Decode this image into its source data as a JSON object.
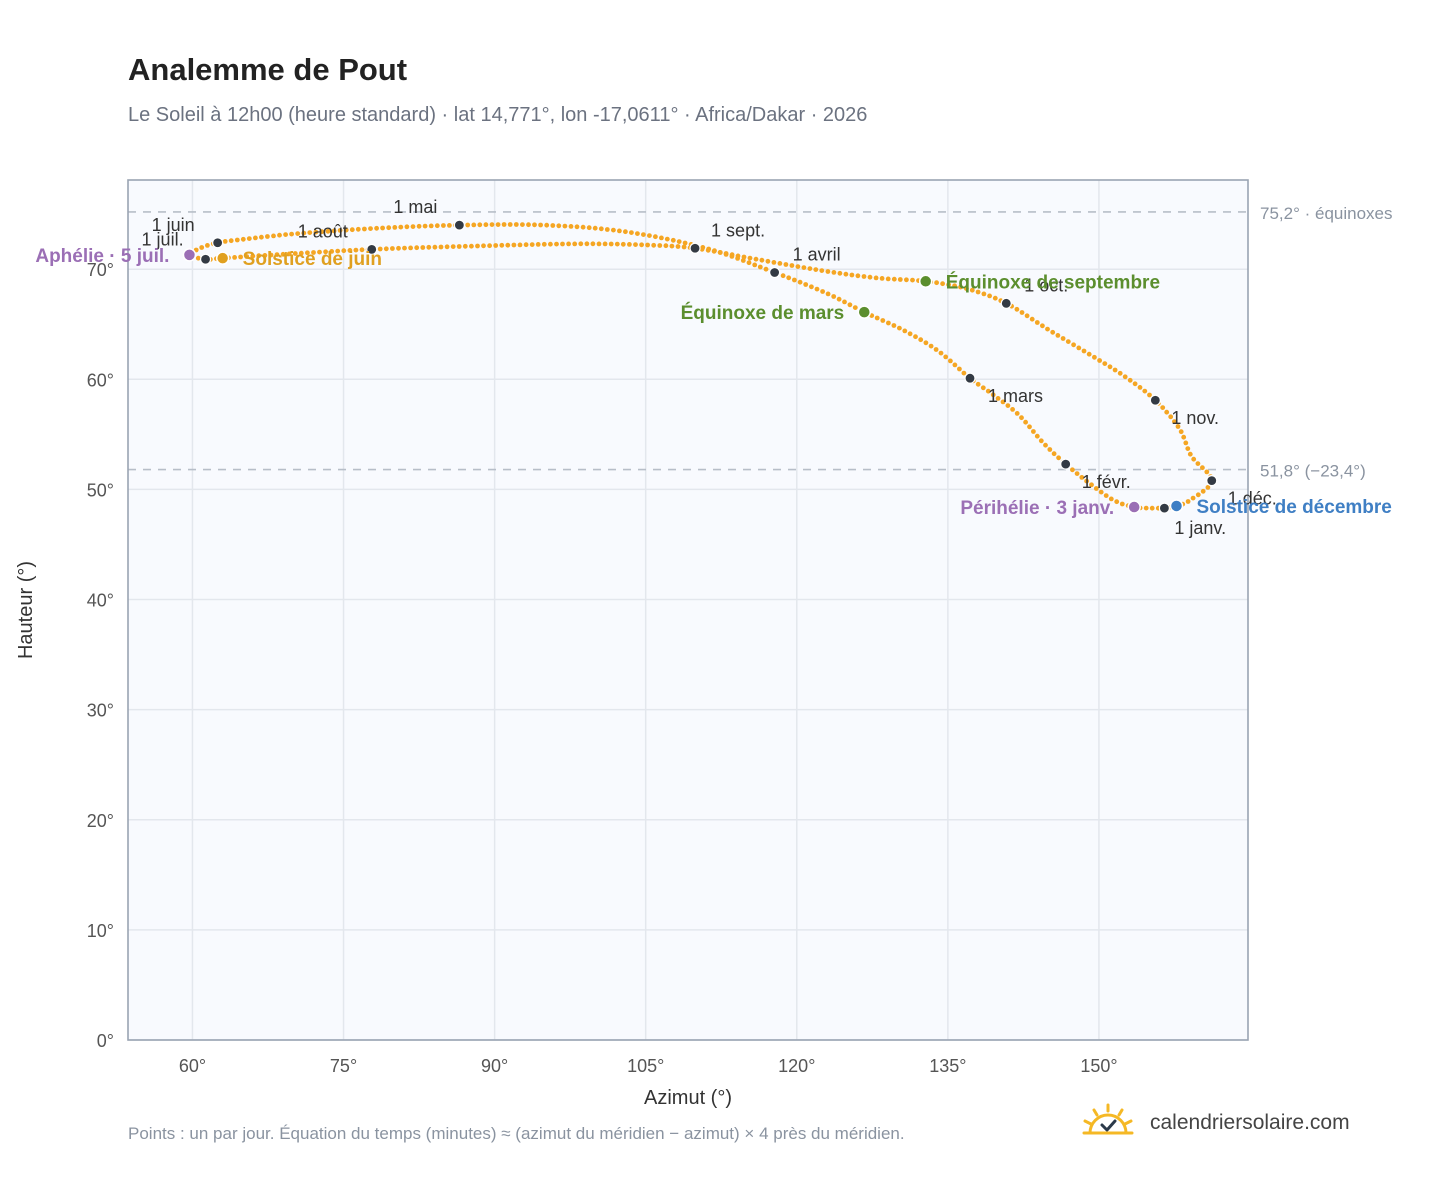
{
  "header": {
    "title": "Analemme de Pout",
    "subtitle": "Le Soleil à 12h00 (heure standard) · lat 14,771°, lon -17,0611° · Africa/Dakar · 2026"
  },
  "footer": {
    "note": "Points : un par jour. Équation du temps (minutes) ≈ (azimut du méridien − azimut) × 4 près du méridien.",
    "brand": "calendriersolaire.com",
    "brand_icon": "sun-check-icon",
    "brand_color": "#f5b825"
  },
  "colors": {
    "curve": "#f5a623",
    "month_marker": "#333a44",
    "equinox": "#5b8e2e",
    "june_solstice": "#e0a020",
    "december_solstice": "#3f7fc4",
    "apsis": "#9b6fb5",
    "plot_bg": "#f8fafe",
    "grid": "#e3e7ed",
    "frame": "#9aa4b2",
    "ref_line": "#b7bec8"
  },
  "chart_data": {
    "type": "scatter",
    "xlabel": "Azimut (°)",
    "ylabel": "Hauteur (°)",
    "xlim": [
      53.6,
      164.8
    ],
    "ylim": [
      0,
      78.1
    ],
    "x_ticks": [
      60,
      75,
      90,
      105,
      120,
      135,
      150
    ],
    "x_tick_labels": [
      "60°",
      "75°",
      "90°",
      "105°",
      "120°",
      "135°",
      "150°"
    ],
    "y_ticks": [
      0,
      10,
      20,
      30,
      40,
      50,
      60,
      70
    ],
    "y_tick_labels": [
      "0°",
      "10°",
      "20°",
      "30°",
      "40°",
      "50°",
      "60°",
      "70°"
    ],
    "grid": true,
    "reference_lines": [
      {
        "y": 75.2,
        "label": "75,2° · équinoxes"
      },
      {
        "y": 51.8,
        "label": "51,8° (−23,4°)"
      }
    ],
    "series": [
      {
        "points_per_day": true,
        "path_anchors": [
          [
            156.5,
            48.3
          ],
          [
            155.0,
            48.3
          ],
          [
            153.5,
            48.4
          ],
          [
            151.5,
            49.0
          ],
          [
            149.0,
            50.6
          ],
          [
            146.7,
            52.3
          ],
          [
            144.5,
            54.2
          ],
          [
            142.0,
            56.8
          ],
          [
            139.5,
            58.6
          ],
          [
            137.2,
            60.1
          ],
          [
            134.0,
            62.6
          ],
          [
            130.5,
            64.5
          ],
          [
            126.7,
            66.1
          ],
          [
            123.0,
            67.8
          ],
          [
            117.8,
            69.7
          ],
          [
            111.0,
            71.9
          ],
          [
            103.0,
            73.4
          ],
          [
            95.0,
            74.0
          ],
          [
            86.5,
            74.0
          ],
          [
            78.0,
            73.7
          ],
          [
            70.0,
            73.2
          ],
          [
            64.0,
            72.6
          ],
          [
            62.5,
            72.4
          ],
          [
            61.0,
            72.0
          ],
          [
            59.7,
            71.3
          ],
          [
            61.3,
            70.9
          ],
          [
            63.0,
            71.0
          ],
          [
            68.0,
            71.3
          ],
          [
            77.8,
            71.8
          ],
          [
            88.0,
            72.1
          ],
          [
            98.0,
            72.3
          ],
          [
            105.0,
            72.2
          ],
          [
            109.9,
            71.9
          ],
          [
            116.0,
            70.9
          ],
          [
            123.0,
            69.8
          ],
          [
            128.0,
            69.2
          ],
          [
            132.8,
            68.9
          ],
          [
            137.0,
            68.2
          ],
          [
            140.8,
            66.9
          ],
          [
            145.0,
            64.5
          ],
          [
            149.0,
            62.3
          ],
          [
            152.5,
            60.3
          ],
          [
            155.6,
            58.1
          ],
          [
            158.0,
            55.5
          ],
          [
            159.2,
            53.0
          ],
          [
            161.2,
            50.8
          ],
          [
            159.0,
            49.0
          ],
          [
            157.7,
            48.5
          ],
          [
            156.5,
            48.3
          ]
        ]
      }
    ],
    "month_markers": [
      {
        "label": "1 janv.",
        "x": 156.5,
        "y": 48.3,
        "lx": 10,
        "ly": 26
      },
      {
        "label": "1 févr.",
        "x": 146.7,
        "y": 52.3,
        "lx": 16,
        "ly": 24
      },
      {
        "label": "1 mars",
        "x": 137.2,
        "y": 60.1,
        "lx": 18,
        "ly": 24
      },
      {
        "label": "1 avril",
        "x": 117.8,
        "y": 69.7,
        "lx": 18,
        "ly": -12
      },
      {
        "label": "1 mai",
        "x": 86.5,
        "y": 74.0,
        "lx": -66,
        "ly": -12
      },
      {
        "label": "1 juin",
        "x": 62.5,
        "y": 72.4,
        "lx": -66,
        "ly": -12
      },
      {
        "label": "1 juil.",
        "x": 61.3,
        "y": 70.9,
        "lx": -64,
        "ly": -14
      },
      {
        "label": "1 août",
        "x": 77.8,
        "y": 71.8,
        "lx": -74,
        "ly": -12
      },
      {
        "label": "1 sept.",
        "x": 109.9,
        "y": 71.9,
        "lx": 16,
        "ly": -12
      },
      {
        "label": "1 oct.",
        "x": 140.8,
        "y": 66.9,
        "lx": 18,
        "ly": -12
      },
      {
        "label": "1 nov.",
        "x": 155.6,
        "y": 58.1,
        "lx": 16,
        "ly": 24
      },
      {
        "label": "1 déc.",
        "x": 161.2,
        "y": 50.8,
        "lx": 16,
        "ly": 24
      }
    ],
    "events": [
      {
        "label": "Équinoxe de mars",
        "x": 126.7,
        "y": 66.1,
        "color_key": "equinox",
        "side": "left"
      },
      {
        "label": "Équinoxe de septembre",
        "x": 132.8,
        "y": 68.9,
        "color_key": "equinox",
        "side": "right"
      },
      {
        "label": "Solstice de juin",
        "x": 63.0,
        "y": 71.0,
        "color_key": "june_solstice",
        "side": "right"
      },
      {
        "label": "Solstice de décembre",
        "x": 157.7,
        "y": 48.5,
        "color_key": "december_solstice",
        "side": "right"
      },
      {
        "label": "Aphélie · 5 juil.",
        "x": 59.7,
        "y": 71.3,
        "color_key": "apsis",
        "side": "left"
      },
      {
        "label": "Périhélie · 3 janv.",
        "x": 153.5,
        "y": 48.4,
        "color_key": "apsis",
        "side": "left"
      }
    ]
  }
}
